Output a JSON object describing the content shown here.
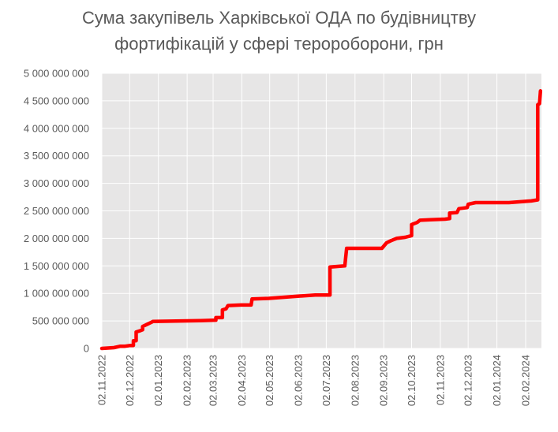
{
  "chart_data": {
    "type": "line",
    "title_line1": "Сума закупівель Харківської ОДА по будівництву",
    "title_line2": "фортифікацій у сфері теророборони, грн",
    "xlabel": "",
    "ylabel": "",
    "ylim": [
      0,
      5000000000
    ],
    "y_ticks": [
      0,
      500000000,
      1000000000,
      1500000000,
      2000000000,
      2500000000,
      3000000000,
      3500000000,
      4000000000,
      4500000000,
      5000000000
    ],
    "y_tick_labels": [
      "0",
      "500 000 000",
      "1 000 000 000",
      "1 500 000 000",
      "2 000 000 000",
      "2 500 000 000",
      "3 000 000 000",
      "3 500 000 000",
      "4 000 000 000",
      "4 500 000 000",
      "5 000 000 000"
    ],
    "xlim": [
      "2022-11-02",
      "2024-02-19"
    ],
    "x_ticks": [
      "2022-11-02",
      "2022-12-02",
      "2023-01-02",
      "2023-02-02",
      "2023-03-02",
      "2023-04-02",
      "2023-05-02",
      "2023-06-02",
      "2023-07-02",
      "2023-08-02",
      "2023-09-02",
      "2023-10-02",
      "2023-11-02",
      "2023-12-02",
      "2024-01-02",
      "2024-02-02"
    ],
    "x_tick_labels": [
      "02.11.2022",
      "02.12.2022",
      "02.01.2023",
      "02.02.2023",
      "02.03.2023",
      "02.04.2023",
      "02.05.2023",
      "02.06.2023",
      "02.07.2023",
      "02.08.2023",
      "02.09.2023",
      "02.10.2023",
      "02.11.2023",
      "02.12.2023",
      "02.01.2024",
      "02.02.2024"
    ],
    "grid": true,
    "legend": "none",
    "colors": {
      "line": "#ff0000",
      "plot_bg": "#e7e6e6",
      "grid": "#ffffff",
      "text": "#595959"
    },
    "series": [
      {
        "points": [
          [
            "2022-11-02",
            0
          ],
          [
            "2022-11-15",
            15000000
          ],
          [
            "2022-11-22",
            40000000
          ],
          [
            "2022-11-27",
            40000000
          ],
          [
            "2022-12-03",
            55000000
          ],
          [
            "2022-12-06",
            55000000
          ],
          [
            "2022-12-06",
            140000000
          ],
          [
            "2022-12-09",
            140000000
          ],
          [
            "2022-12-09",
            300000000
          ],
          [
            "2022-12-13",
            320000000
          ],
          [
            "2022-12-16",
            340000000
          ],
          [
            "2022-12-16",
            400000000
          ],
          [
            "2022-12-21",
            440000000
          ],
          [
            "2022-12-26",
            480000000
          ],
          [
            "2022-12-27",
            490000000
          ],
          [
            "2023-01-15",
            495000000
          ],
          [
            "2023-02-15",
            505000000
          ],
          [
            "2023-03-05",
            515000000
          ],
          [
            "2023-03-05",
            560000000
          ],
          [
            "2023-03-12",
            560000000
          ],
          [
            "2023-03-12",
            700000000
          ],
          [
            "2023-03-16",
            720000000
          ],
          [
            "2023-03-18",
            780000000
          ],
          [
            "2023-04-01",
            790000000
          ],
          [
            "2023-04-12",
            790000000
          ],
          [
            "2023-04-13",
            900000000
          ],
          [
            "2023-05-01",
            910000000
          ],
          [
            "2023-06-01",
            950000000
          ],
          [
            "2023-06-20",
            970000000
          ],
          [
            "2023-07-06",
            970000000
          ],
          [
            "2023-07-06",
            1480000000
          ],
          [
            "2023-07-22",
            1500000000
          ],
          [
            "2023-07-24",
            1820000000
          ],
          [
            "2023-08-31",
            1820000000
          ],
          [
            "2023-09-05",
            1920000000
          ],
          [
            "2023-09-10",
            1960000000
          ],
          [
            "2023-09-16",
            2000000000
          ],
          [
            "2023-09-25",
            2020000000
          ],
          [
            "2023-10-02",
            2050000000
          ],
          [
            "2023-10-02",
            2250000000
          ],
          [
            "2023-10-08",
            2290000000
          ],
          [
            "2023-10-11",
            2330000000
          ],
          [
            "2023-10-22",
            2340000000
          ],
          [
            "2023-11-07",
            2350000000
          ],
          [
            "2023-11-12",
            2360000000
          ],
          [
            "2023-11-12",
            2460000000
          ],
          [
            "2023-11-20",
            2470000000
          ],
          [
            "2023-11-22",
            2540000000
          ],
          [
            "2023-12-01",
            2560000000
          ],
          [
            "2023-12-02",
            2620000000
          ],
          [
            "2023-12-10",
            2650000000
          ],
          [
            "2024-01-15",
            2650000000
          ],
          [
            "2024-02-08",
            2680000000
          ],
          [
            "2024-02-15",
            2700000000
          ],
          [
            "2024-02-15",
            4430000000
          ],
          [
            "2024-02-17",
            4450000000
          ],
          [
            "2024-02-18",
            4680000000
          ]
        ]
      }
    ]
  }
}
